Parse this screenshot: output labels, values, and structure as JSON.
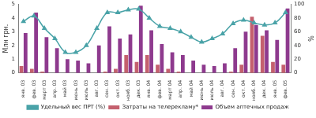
{
  "chart_data": {
    "type": "bar",
    "categories": [
      "янв. 03",
      "фев. 03",
      "март 03",
      "апр. 03",
      "май 03",
      "июнь 03",
      "июль 03",
      "авг. 03",
      "сен. 03",
      "окт. 03",
      "нояб. 03",
      "дек. 03",
      "янв. 04",
      "фев. 04",
      "март 04",
      "апр. 04",
      "май 04",
      "июнь 04",
      "июль 04",
      "авг. 04",
      "сен. 04",
      "окт. 04",
      "нояб. 04",
      "дек. 04",
      "янв. 05",
      "фев. 05"
    ],
    "series": [
      {
        "name": "Затраты на телерекламу*",
        "type": "bar",
        "color": "#c4606e",
        "values": [
          0.5,
          0.3,
          0.1,
          0,
          0,
          0,
          0,
          0,
          0.1,
          0.3,
          1.3,
          0.8,
          1.3,
          0.6,
          0.3,
          0.1,
          0,
          0,
          0,
          0,
          0.1,
          0.6,
          4.1,
          2.7,
          0.8,
          0.6
        ]
      },
      {
        "name": "Объем аптечных продаж",
        "type": "bar",
        "color": "#8e3a8e",
        "values": [
          2.9,
          4.4,
          2.6,
          1.8,
          1.0,
          0.9,
          0.7,
          2.0,
          3.4,
          2.5,
          2.8,
          4.9,
          3.1,
          2.1,
          1.5,
          1.3,
          0.9,
          0.6,
          0.5,
          0.7,
          1.8,
          3.0,
          3.5,
          3.1,
          2.4,
          4.7
        ]
      },
      {
        "name": "Удельный вес ПРТ (%)",
        "type": "line",
        "axis": "y2",
        "marker": "triangle",
        "color": "#4aa3a8",
        "values": [
          75,
          83,
          65,
          50,
          30,
          30,
          40,
          65,
          88,
          88,
          92,
          93,
          80,
          68,
          65,
          60,
          52,
          45,
          50,
          57,
          72,
          77,
          73,
          70,
          73,
          88
        ]
      }
    ],
    "y_label": "Млн грн.",
    "y2_label": "%",
    "ylim": [
      0,
      5
    ],
    "yticks": [
      0,
      1,
      2,
      3,
      4,
      5
    ],
    "y2lim": [
      0,
      100
    ],
    "y2ticks": [
      0,
      20,
      40,
      60,
      80,
      100
    ],
    "grid": false,
    "legend": "bottom"
  }
}
